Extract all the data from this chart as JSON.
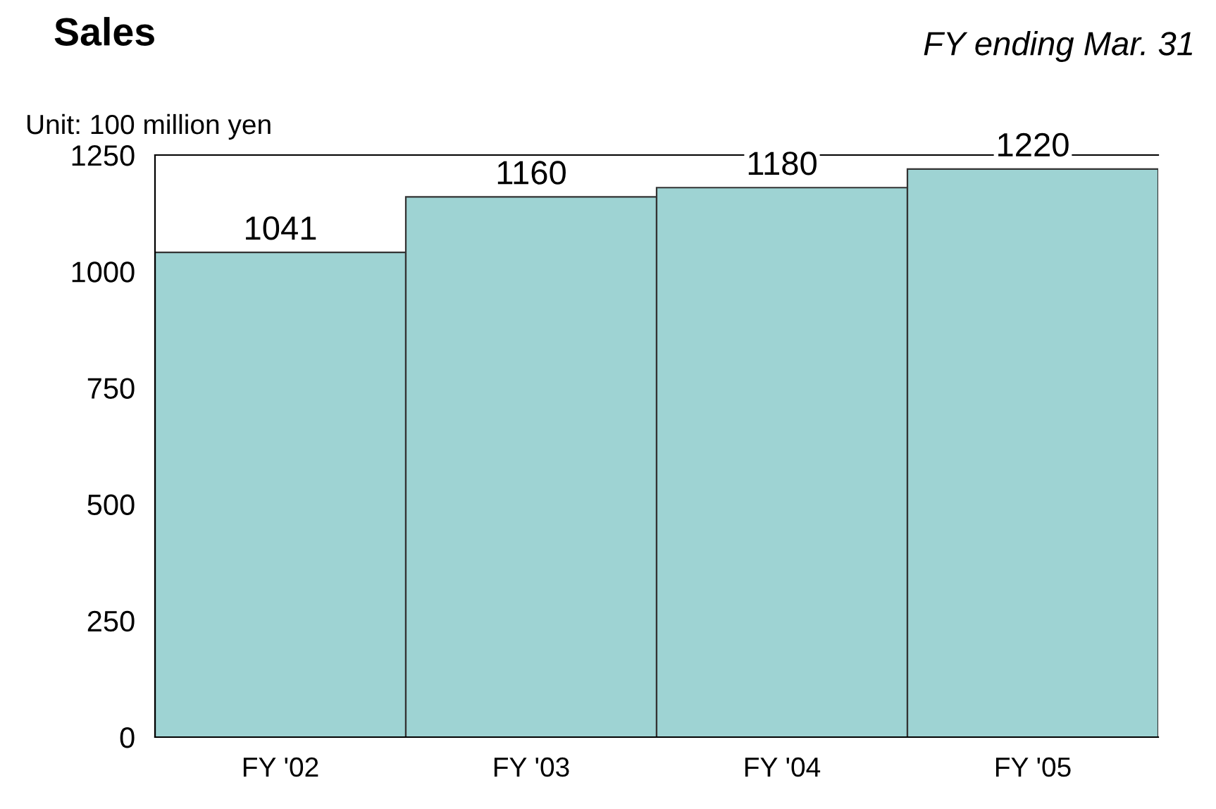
{
  "chart_data": {
    "type": "bar",
    "title": "Sales",
    "subtitle": "FY ending Mar. 31",
    "ylabel": "Unit: 100 million yen",
    "categories": [
      "FY '02",
      "FY '03",
      "FY '04",
      "FY '05"
    ],
    "values": [
      1041,
      1160,
      1180,
      1220
    ],
    "color": "#9ed3d3",
    "ylim": [
      0,
      1250
    ],
    "yticks": [
      0,
      250,
      500,
      750,
      1000,
      1250
    ],
    "grid": false,
    "data_labels": true
  }
}
